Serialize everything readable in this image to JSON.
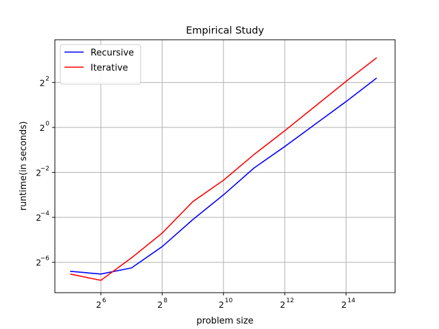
{
  "chart_data": {
    "type": "line",
    "title": "Empirical Study",
    "xlabel": "problem size",
    "ylabel": "runtime(in seconds)",
    "x_scale": "log2",
    "y_scale": "log2",
    "xlim_log2": [
      4.5,
      15.6
    ],
    "ylim_log2": [
      -7.35,
      3.9
    ],
    "x_ticks": [
      {
        "base": "2",
        "exp": "6",
        "log2": 6
      },
      {
        "base": "2",
        "exp": "8",
        "log2": 8
      },
      {
        "base": "2",
        "exp": "10",
        "log2": 10
      },
      {
        "base": "2",
        "exp": "12",
        "log2": 12
      },
      {
        "base": "2",
        "exp": "14",
        "log2": 14
      }
    ],
    "y_ticks": [
      {
        "base": "2",
        "exp": "2",
        "log2": 2
      },
      {
        "base": "2",
        "exp": "0",
        "log2": 0
      },
      {
        "base": "2",
        "exp": "−2",
        "log2": -2
      },
      {
        "base": "2",
        "exp": "−4",
        "log2": -4
      },
      {
        "base": "2",
        "exp": "−6",
        "log2": -6
      }
    ],
    "grid": true,
    "legend_position": "top-left",
    "x": [
      32,
      64,
      128,
      256,
      512,
      1024,
      2048,
      4096,
      8192,
      16384,
      32768
    ],
    "series": [
      {
        "name": "Recursive",
        "color": "#0000ff",
        "log2_values": [
          -6.4,
          -6.52,
          -6.25,
          -5.3,
          -4.1,
          -3.0,
          -1.8,
          -0.85,
          0.15,
          1.15,
          2.2
        ]
      },
      {
        "name": "Iterative",
        "color": "#ff0000",
        "log2_values": [
          -6.52,
          -6.8,
          -5.8,
          -4.7,
          -3.3,
          -2.35,
          -1.2,
          -0.15,
          0.95,
          2.05,
          3.1
        ]
      }
    ]
  }
}
